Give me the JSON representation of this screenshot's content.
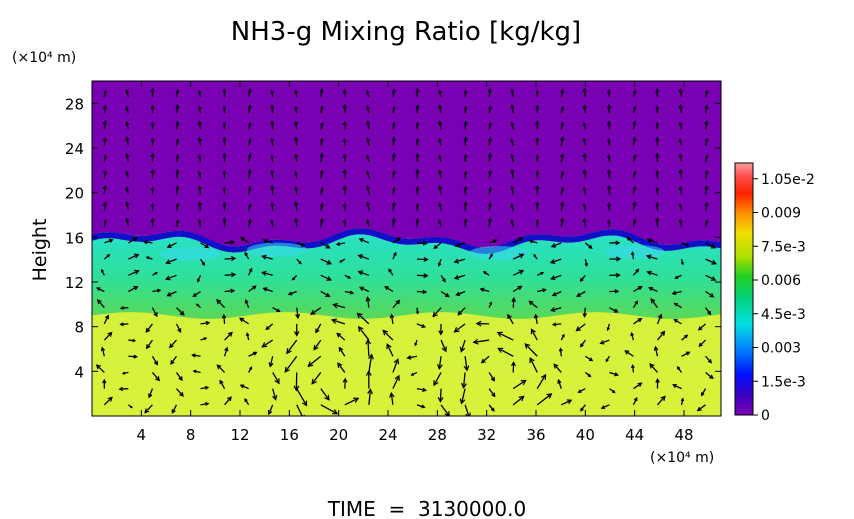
{
  "chart_data": {
    "type": "heatmap",
    "title": "NH3-g Mixing Ratio [kg/kg]",
    "ylabel": "Height",
    "y_unit_label": "(×10⁴ m)",
    "x_unit_label": "(×10⁴ m)",
    "footer": "TIME  =  3130000.0",
    "x_ticks": [
      4,
      8,
      12,
      16,
      20,
      24,
      28,
      32,
      36,
      40,
      44,
      48
    ],
    "y_ticks": [
      4,
      8,
      12,
      16,
      20,
      24,
      28
    ],
    "xlim": [
      0,
      51
    ],
    "ylim": [
      0,
      30
    ],
    "colorbar": {
      "labels": [
        "1.05e-2",
        "0.009",
        "7.5e-3",
        "0.006",
        "4.5e-3",
        "0.003",
        "1.5e-3",
        "0"
      ],
      "values": [
        0.0105,
        0.009,
        0.0075,
        0.006,
        0.0045,
        0.003,
        0.0015,
        0
      ],
      "range": [
        0,
        0.0112
      ]
    },
    "field_layers": [
      {
        "layer": "upper",
        "y_range": [
          15.5,
          30
        ],
        "value": 0
      },
      {
        "layer": "boundary",
        "y_range": [
          14.8,
          17
        ],
        "value": 0.0015
      },
      {
        "layer": "mid-upper",
        "y_range": [
          12.5,
          15.5
        ],
        "value": 0.0052
      },
      {
        "layer": "mid-lower",
        "y_range": [
          9,
          12.5
        ],
        "value": 0.0066
      },
      {
        "layer": "lower",
        "y_range": [
          0,
          9
        ],
        "value": 0.0077
      }
    ],
    "vortices": [
      {
        "x": 19.5,
        "y": 3.5
      },
      {
        "x": 34,
        "y": 3.5
      }
    ],
    "colors": {
      "upper": "#7a00b4",
      "boundary": "#1010c8",
      "mid_upper": "#27e2c0",
      "mid_lower": "#52d85a",
      "lower": "#d2f03a"
    }
  }
}
